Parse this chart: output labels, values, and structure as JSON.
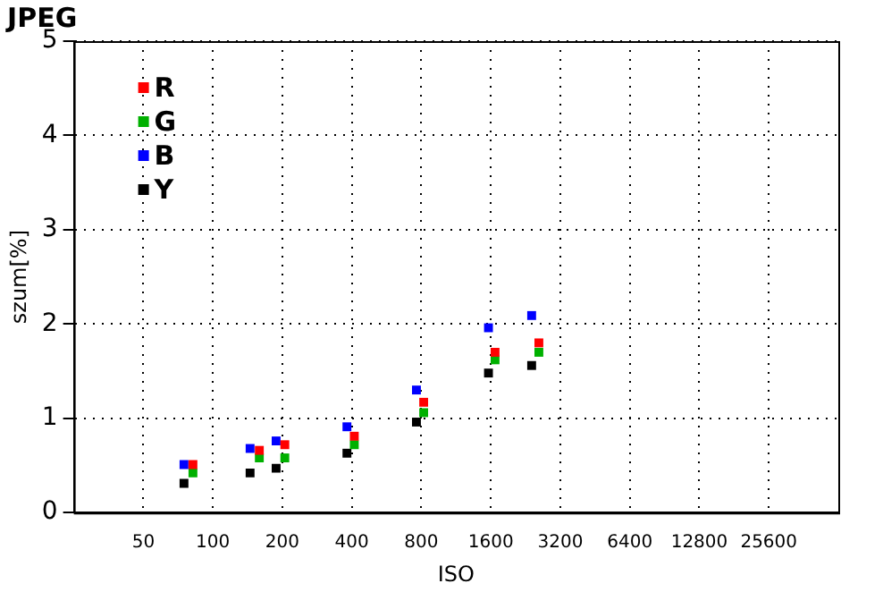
{
  "chart_data": {
    "type": "scatter",
    "title": "JPEG",
    "xlabel": "ISO",
    "ylabel": "szum[%]",
    "log": "x",
    "xlim": [
      25,
      51200
    ],
    "xticks": [
      50,
      100,
      200,
      400,
      800,
      1600,
      3200,
      6400,
      12800,
      25600
    ],
    "ylim": [
      0,
      5
    ],
    "yticks": [
      0,
      1,
      2,
      3,
      4,
      5
    ],
    "grid": true,
    "legend": "top left",
    "marker": "square",
    "series": [
      {
        "name": "R",
        "color": "#ff0000",
        "x": [
          82,
          159,
          205,
          410,
          819,
          1669,
          2584
        ],
        "values": [
          0.51,
          0.66,
          0.72,
          0.81,
          1.17,
          1.7,
          1.8
        ]
      },
      {
        "name": "G",
        "color": "#00b000",
        "x": [
          82,
          159,
          205,
          410,
          819,
          1669,
          2584
        ],
        "values": [
          0.42,
          0.58,
          0.58,
          0.72,
          1.06,
          1.62,
          1.7
        ]
      },
      {
        "name": "B",
        "color": "#0000ff",
        "x": [
          75,
          145,
          188,
          381,
          762,
          1563,
          2404
        ],
        "values": [
          0.51,
          0.68,
          0.76,
          0.91,
          1.3,
          1.96,
          2.09
        ]
      },
      {
        "name": "Y",
        "color": "#000000",
        "x": [
          75,
          145,
          188,
          381,
          762,
          1563,
          2404
        ],
        "values": [
          0.31,
          0.42,
          0.47,
          0.63,
          0.96,
          1.48,
          1.56
        ]
      }
    ]
  }
}
